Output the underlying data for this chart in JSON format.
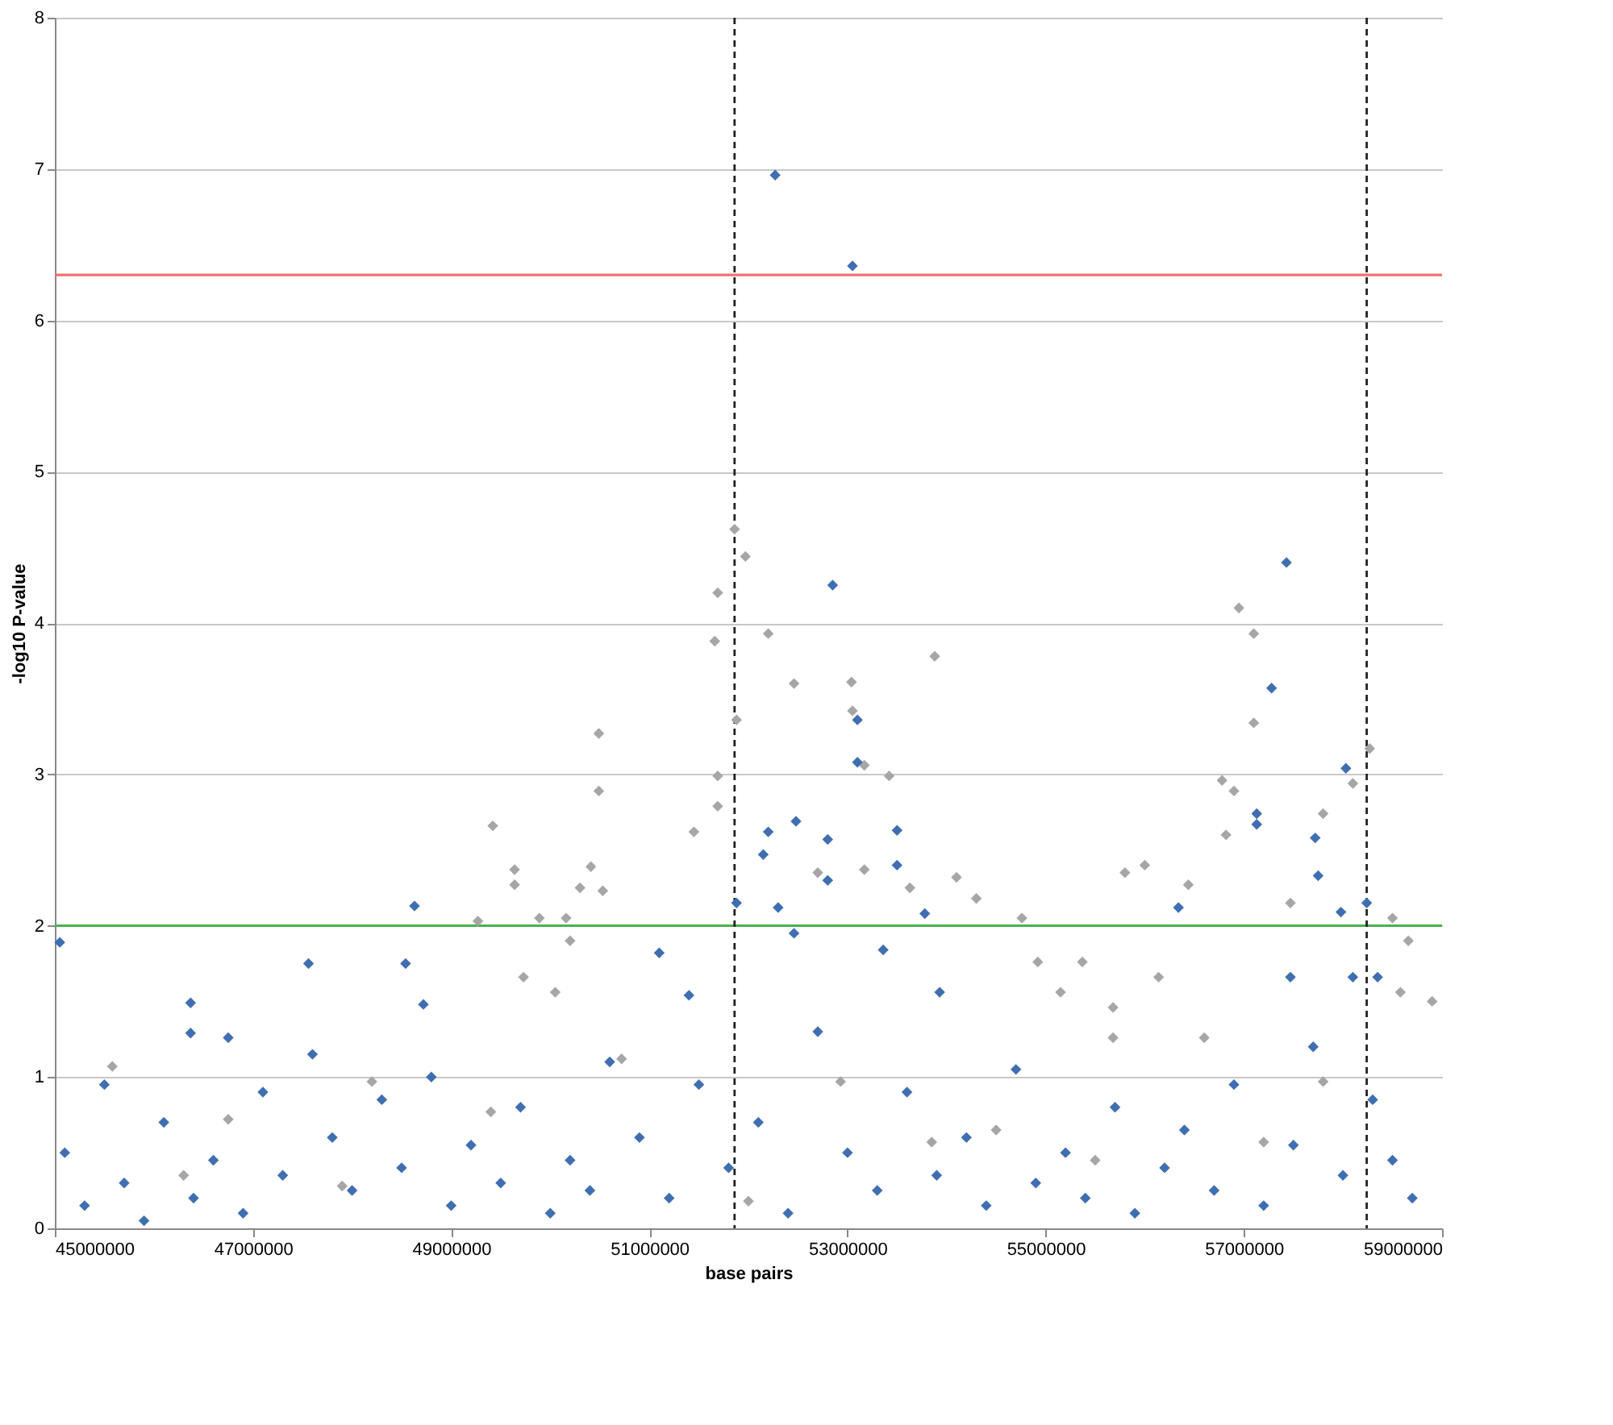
{
  "chart_data": {
    "type": "scatter",
    "xlabel": "base pairs",
    "ylabel": "-log10 P-value",
    "xlim": [
      45000000,
      59000000
    ],
    "xticks": [
      45000000,
      47000000,
      49000000,
      51000000,
      53000000,
      55000000,
      57000000,
      59000000
    ],
    "ylim": [
      0,
      8
    ],
    "yticks": [
      0,
      1,
      2,
      3,
      4,
      5,
      6,
      7,
      8
    ],
    "grid": "y",
    "marker": "diamond",
    "series": [
      {
        "color": "#a6a6a6",
        "x": [
          51860000,
          51970000,
          51690000,
          51660000,
          52200000,
          51880000,
          51690000,
          51690000,
          51450000,
          52460000,
          53040000,
          53050000,
          53170000,
          53420000,
          53880000,
          56950000,
          57100000,
          57100000,
          56780000,
          56900000,
          56820000,
          58270000,
          58100000,
          57800000,
          50490000,
          50490000,
          49420000,
          49640000,
          49640000,
          50410000,
          50300000,
          50530000,
          49270000,
          49890000,
          50160000,
          49730000,
          50050000,
          50200000,
          52700000,
          53170000,
          53630000,
          54100000,
          54300000,
          54760000,
          55800000,
          56000000,
          56440000,
          57470000,
          58500000,
          58660000,
          58580000,
          54920000,
          55150000,
          55370000,
          55680000,
          56140000,
          56600000,
          55680000,
          45580000,
          48200000,
          46750000,
          49400000,
          50720000,
          52930000,
          53850000,
          57800000,
          57200000,
          47900000,
          52000000,
          46300000,
          54500000,
          55500000,
          58900000
        ],
        "values": [
          4.62,
          4.44,
          4.2,
          3.88,
          3.93,
          3.36,
          2.99,
          2.79,
          2.62,
          3.6,
          3.61,
          3.42,
          3.06,
          2.99,
          3.78,
          4.1,
          3.93,
          3.34,
          2.96,
          2.89,
          2.6,
          3.17,
          2.94,
          2.74,
          3.27,
          2.89,
          2.66,
          2.37,
          2.27,
          2.39,
          2.25,
          2.23,
          2.03,
          2.05,
          2.05,
          1.66,
          1.56,
          1.9,
          2.35,
          2.37,
          2.25,
          2.32,
          2.18,
          2.05,
          2.35,
          2.4,
          2.27,
          2.15,
          2.05,
          1.9,
          1.56,
          1.76,
          1.56,
          1.76,
          1.46,
          1.66,
          1.26,
          1.26,
          1.07,
          0.97,
          0.72,
          0.77,
          1.12,
          0.97,
          0.57,
          0.97,
          0.57,
          0.28,
          0.18,
          0.35,
          0.65,
          0.45,
          1.5
        ]
      },
      {
        "color": "#3f6fb0",
        "x": [
          52270000,
          53050000,
          52850000,
          57430000,
          57280000,
          53100000,
          53100000,
          58030000,
          45050000,
          48630000,
          47560000,
          48540000,
          46370000,
          46370000,
          46750000,
          48720000,
          51100000,
          51400000,
          52200000,
          52150000,
          51880000,
          52300000,
          52480000,
          52460000,
          52800000,
          52800000,
          53500000,
          53500000,
          53360000,
          53780000,
          53930000,
          56340000,
          57130000,
          57130000,
          57750000,
          57720000,
          57980000,
          58240000,
          58100000,
          58350000,
          57470000,
          45100000,
          45300000,
          45500000,
          45700000,
          45900000,
          46100000,
          46400000,
          46600000,
          46900000,
          47100000,
          47300000,
          47600000,
          47800000,
          48000000,
          48300000,
          48500000,
          48800000,
          49000000,
          49200000,
          49500000,
          49700000,
          50000000,
          50200000,
          50400000,
          50600000,
          50900000,
          51200000,
          51500000,
          51800000,
          52100000,
          52400000,
          52700000,
          53000000,
          53300000,
          53600000,
          53900000,
          54200000,
          54400000,
          54700000,
          54900000,
          55200000,
          55400000,
          55700000,
          55900000,
          56200000,
          56400000,
          56700000,
          56900000,
          57200000,
          57500000,
          57700000,
          58000000,
          58300000,
          58500000,
          58700000
        ],
        "values": [
          6.96,
          6.36,
          4.25,
          4.4,
          3.57,
          3.36,
          3.08,
          3.04,
          1.89,
          2.13,
          1.75,
          1.75,
          1.49,
          1.29,
          1.26,
          1.48,
          1.82,
          1.54,
          2.62,
          2.47,
          2.15,
          2.12,
          2.69,
          1.95,
          2.57,
          2.3,
          2.63,
          2.4,
          1.84,
          2.08,
          1.56,
          2.12,
          2.74,
          2.67,
          2.33,
          2.58,
          2.09,
          2.15,
          1.66,
          1.66,
          1.66,
          0.5,
          0.15,
          0.95,
          0.3,
          0.05,
          0.7,
          0.2,
          0.45,
          0.1,
          0.9,
          0.35,
          1.15,
          0.6,
          0.25,
          0.85,
          0.4,
          1.0,
          0.15,
          0.55,
          0.3,
          0.8,
          0.1,
          0.45,
          0.25,
          1.1,
          0.6,
          0.2,
          0.95,
          0.4,
          0.7,
          0.1,
          1.3,
          0.5,
          0.25,
          0.9,
          0.35,
          0.6,
          0.15,
          1.05,
          0.3,
          0.5,
          0.2,
          0.8,
          0.1,
          0.4,
          0.65,
          0.25,
          0.95,
          0.15,
          0.55,
          1.2,
          0.35,
          0.85,
          0.45,
          0.2
        ]
      }
    ],
    "ref_lines": [
      {
        "axis": "y",
        "value": 6.3,
        "color": "#f07070",
        "line_style": "solid"
      },
      {
        "axis": "y",
        "value": 2,
        "color": "#4cb050",
        "line_style": "solid"
      },
      {
        "axis": "x",
        "value": 51860000,
        "color": "#222222",
        "line_style": "dashed"
      },
      {
        "axis": "x",
        "value": 58240000,
        "color": "#222222",
        "line_style": "dashed"
      }
    ]
  }
}
